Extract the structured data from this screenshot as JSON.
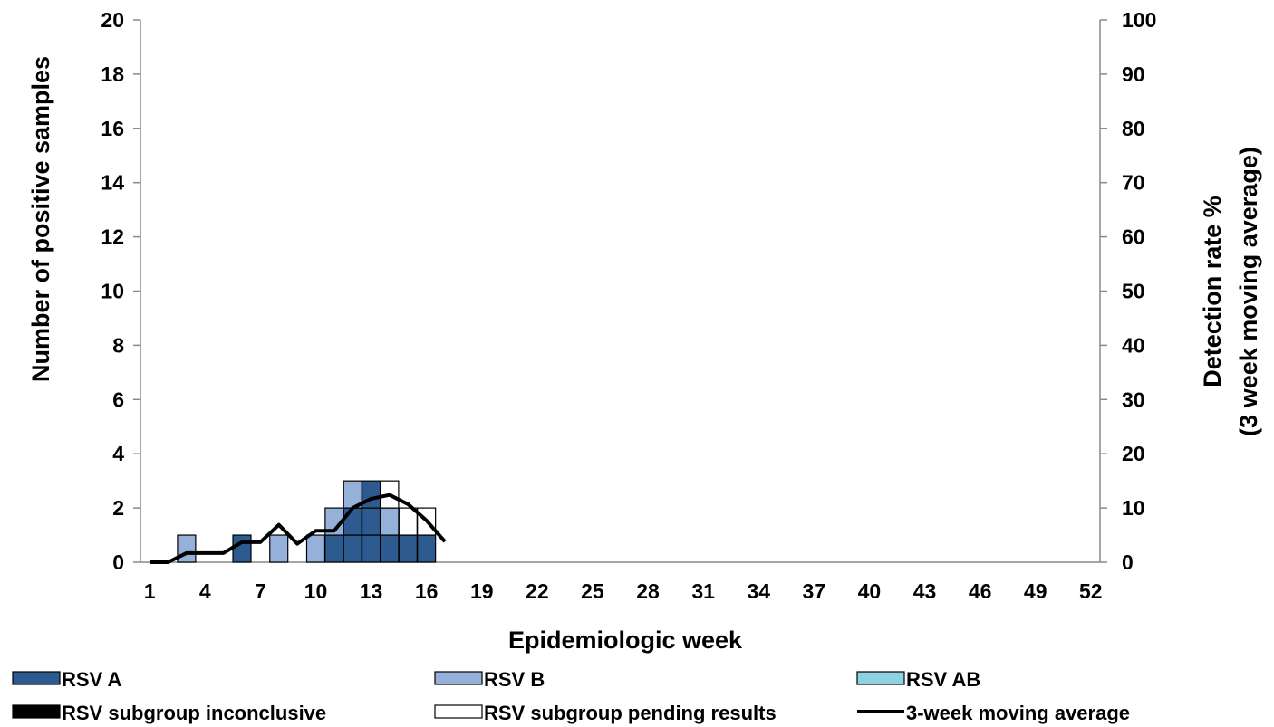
{
  "chart_data": {
    "type": "bar",
    "stacked": true,
    "title": "",
    "xlabel": "Epidemiologic week",
    "ylabel": "Number of positive samples",
    "y2label_line1": "Detection rate %",
    "y2label_line2": "(3 week moving average)",
    "ylim": [
      0,
      20
    ],
    "y2lim": [
      0,
      100
    ],
    "yticks": [
      "0",
      "2",
      "4",
      "6",
      "8",
      "10",
      "12",
      "14",
      "16",
      "18",
      "20"
    ],
    "y2ticks": [
      "0",
      "10",
      "20",
      "30",
      "40",
      "50",
      "60",
      "70",
      "80",
      "90",
      "100"
    ],
    "xticks": [
      "1",
      "4",
      "7",
      "10",
      "13",
      "16",
      "19",
      "22",
      "25",
      "28",
      "31",
      "34",
      "37",
      "40",
      "43",
      "46",
      "49",
      "52"
    ],
    "weeks": [
      1,
      2,
      3,
      4,
      5,
      6,
      7,
      8,
      9,
      10,
      11,
      12,
      13,
      14,
      15,
      16,
      17,
      18,
      19,
      20,
      21,
      22,
      23,
      24,
      25,
      26,
      27,
      28,
      29,
      30,
      31,
      32,
      33,
      34,
      35,
      36,
      37,
      38,
      39,
      40,
      41,
      42,
      43,
      44,
      45,
      46,
      47,
      48,
      49,
      50,
      51,
      52
    ],
    "series": [
      {
        "name": "RSV A",
        "color": "#2e5b8f",
        "values": [
          0,
          0,
          0,
          0,
          0,
          1,
          0,
          0,
          0,
          0,
          1,
          2,
          3,
          1,
          1,
          1,
          0,
          0,
          0,
          0,
          0,
          0,
          0,
          0,
          0,
          0,
          0,
          0,
          0,
          0,
          0,
          0,
          0,
          0,
          0,
          0,
          0,
          0,
          0,
          0,
          0,
          0,
          0,
          0,
          0,
          0,
          0,
          0,
          0,
          0,
          0,
          0
        ]
      },
      {
        "name": "RSV B",
        "color": "#96b1d9",
        "values": [
          0,
          0,
          1,
          0,
          0,
          0,
          0,
          1,
          0,
          1,
          1,
          1,
          0,
          1,
          0,
          0,
          0,
          0,
          0,
          0,
          0,
          0,
          0,
          0,
          0,
          0,
          0,
          0,
          0,
          0,
          0,
          0,
          0,
          0,
          0,
          0,
          0,
          0,
          0,
          0,
          0,
          0,
          0,
          0,
          0,
          0,
          0,
          0,
          0,
          0,
          0,
          0
        ]
      },
      {
        "name": "RSV AB",
        "color": "#8ed1e0",
        "values": [
          0,
          0,
          0,
          0,
          0,
          0,
          0,
          0,
          0,
          0,
          0,
          0,
          0,
          0,
          0,
          0,
          0,
          0,
          0,
          0,
          0,
          0,
          0,
          0,
          0,
          0,
          0,
          0,
          0,
          0,
          0,
          0,
          0,
          0,
          0,
          0,
          0,
          0,
          0,
          0,
          0,
          0,
          0,
          0,
          0,
          0,
          0,
          0,
          0,
          0,
          0,
          0
        ]
      },
      {
        "name": "RSV subgroup inconclusive",
        "color": "#000000",
        "values": [
          0,
          0,
          0,
          0,
          0,
          0,
          0,
          0,
          0,
          0,
          0,
          0,
          0,
          0,
          0,
          0,
          0,
          0,
          0,
          0,
          0,
          0,
          0,
          0,
          0,
          0,
          0,
          0,
          0,
          0,
          0,
          0,
          0,
          0,
          0,
          0,
          0,
          0,
          0,
          0,
          0,
          0,
          0,
          0,
          0,
          0,
          0,
          0,
          0,
          0,
          0,
          0
        ]
      },
      {
        "name": "RSV subgroup pending results",
        "color": "#ffffff",
        "values": [
          0,
          0,
          0,
          0,
          0,
          0,
          0,
          0,
          0,
          0,
          0,
          0,
          0,
          1,
          1,
          1,
          0,
          0,
          0,
          0,
          0,
          0,
          0,
          0,
          0,
          0,
          0,
          0,
          0,
          0,
          0,
          0,
          0,
          0,
          0,
          0,
          0,
          0,
          0,
          0,
          0,
          0,
          0,
          0,
          0,
          0,
          0,
          0,
          0,
          0,
          0,
          0
        ]
      }
    ],
    "line": {
      "name": "3-week moving average",
      "color": "#000000",
      "axis": "right",
      "x": [
        1,
        2,
        3,
        4,
        5,
        6,
        7,
        8,
        9,
        10,
        11,
        12,
        13,
        14,
        15,
        16,
        17
      ],
      "values": [
        0,
        0,
        1.7,
        1.7,
        1.7,
        3.7,
        3.7,
        6.9,
        3.4,
        5.8,
        5.8,
        10,
        11.7,
        12.4,
        10.7,
        7.7,
        3.8
      ]
    },
    "legend": {
      "position": "bottom"
    },
    "grid": false
  }
}
